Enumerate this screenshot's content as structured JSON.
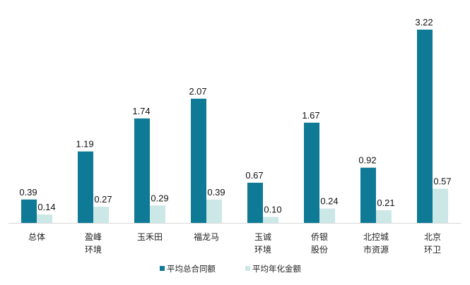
{
  "chart_data": {
    "type": "bar",
    "categories": [
      "总体",
      "盈峰\n环境",
      "玉禾田",
      "福龙马",
      "玉诚\n环境",
      "侨银\n股份",
      "北控城\n市资源",
      "北京\n环卫"
    ],
    "series": [
      {
        "name": "平均总合同额",
        "color": "#0e7a96",
        "values": [
          0.39,
          1.19,
          1.74,
          2.07,
          0.67,
          1.67,
          0.92,
          3.22
        ]
      },
      {
        "name": "平均年化金额",
        "color": "#cbe7e6",
        "values": [
          0.14,
          0.27,
          0.29,
          0.39,
          0.1,
          0.24,
          0.21,
          0.57
        ]
      }
    ],
    "title": "",
    "xlabel": "",
    "ylabel": "",
    "ylim": [
      0,
      3.4
    ],
    "grid": false,
    "legend": "bottom-center",
    "data_labels": true
  }
}
